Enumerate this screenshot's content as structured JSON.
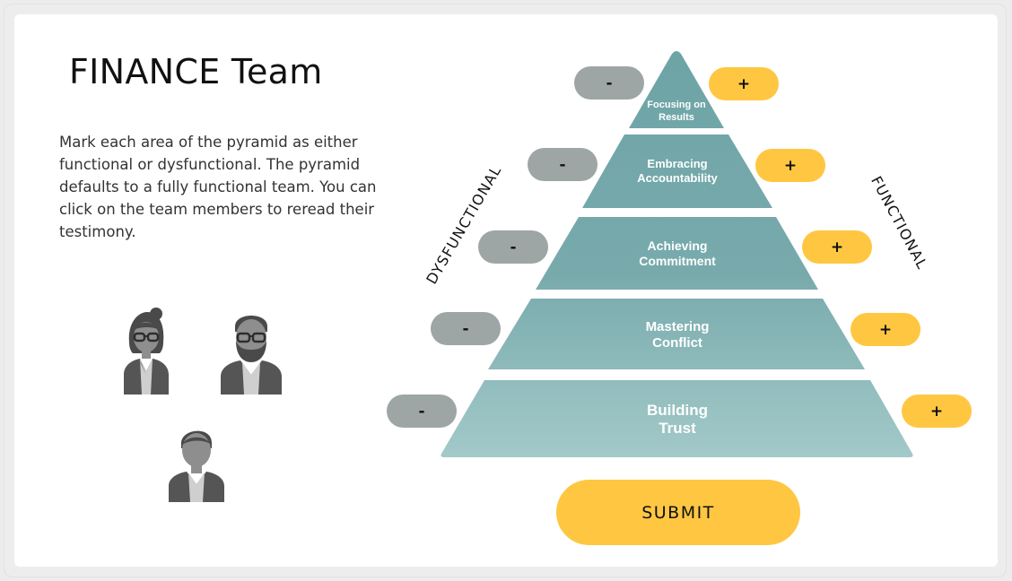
{
  "title": "FINANCE Team",
  "instructions": "Mark each area of the pyramid as either functional or dysfunctional. The pyramid defaults to a fully functional team. You can click on the team members to reread their testimony.",
  "labels": {
    "dysfunctional": "DYSFUNCTIONAL",
    "functional": "FUNCTIONAL"
  },
  "tiers": [
    {
      "line1": "Focusing on",
      "line2": "Results",
      "minus": "-",
      "plus": "+"
    },
    {
      "line1": "Embracing",
      "line2": "Accountability",
      "minus": "-",
      "plus": "+"
    },
    {
      "line1": "Achieving",
      "line2": "Commitment",
      "minus": "-",
      "plus": "+"
    },
    {
      "line1": "Mastering",
      "line2": "Conflict",
      "minus": "-",
      "plus": "+"
    },
    {
      "line1": "Building",
      "line2": "Trust",
      "minus": "-",
      "plus": "+"
    }
  ],
  "submit_label": "SUBMIT",
  "team_members": [
    {
      "icon": "woman-avatar-icon"
    },
    {
      "icon": "bearded-man-avatar-icon"
    },
    {
      "icon": "man-avatar-icon"
    }
  ],
  "colors": {
    "minus": "#9ea5a5",
    "plus": "#ffc741",
    "tier_top": "#6ea4a6",
    "tier_bottom": "#a1c8c8"
  }
}
